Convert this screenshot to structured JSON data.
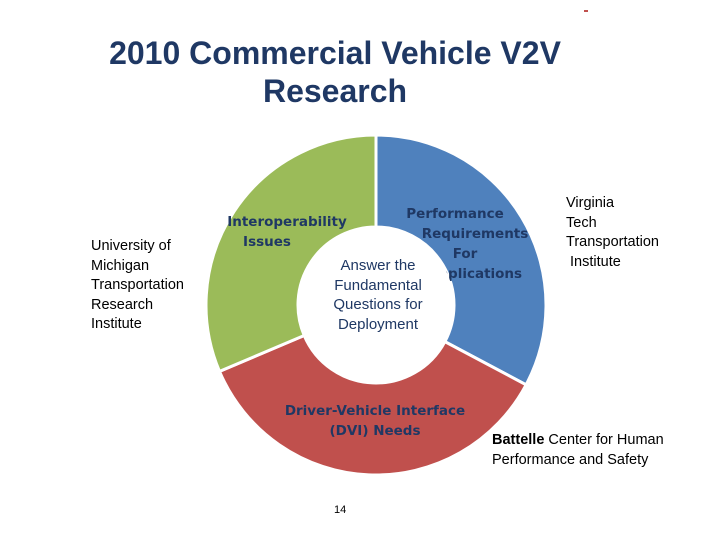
{
  "title": {
    "line1": "2010 Commercial Vehicle V2V",
    "line2": "Research"
  },
  "diagram": {
    "center": [
      "Answer the",
      "Fundamental",
      "Questions for",
      "Deployment"
    ],
    "segments": [
      {
        "id": "performance",
        "color": "#4f81bd",
        "lines": [
          "Performance",
          "Requirements",
          "For",
          "Applications"
        ]
      },
      {
        "id": "dvi",
        "color": "#c0504d",
        "lines": [
          "Driver-Vehicle Interface",
          "(DVI) Needs"
        ]
      },
      {
        "id": "interoperability",
        "color": "#9bbb59",
        "lines": [
          "Interoperability",
          "Issues"
        ]
      }
    ]
  },
  "labels": {
    "umtri": [
      "University of",
      "Michigan",
      "Transportation",
      "Research",
      "Institute"
    ],
    "vtti": [
      "Virginia",
      "Tech",
      "Transportation",
      " Institute"
    ],
    "battelle": {
      "bold": "Battelle",
      "line1_rest": " Center for Human",
      "line2": "Performance and Safety"
    }
  },
  "page_number": "14"
}
